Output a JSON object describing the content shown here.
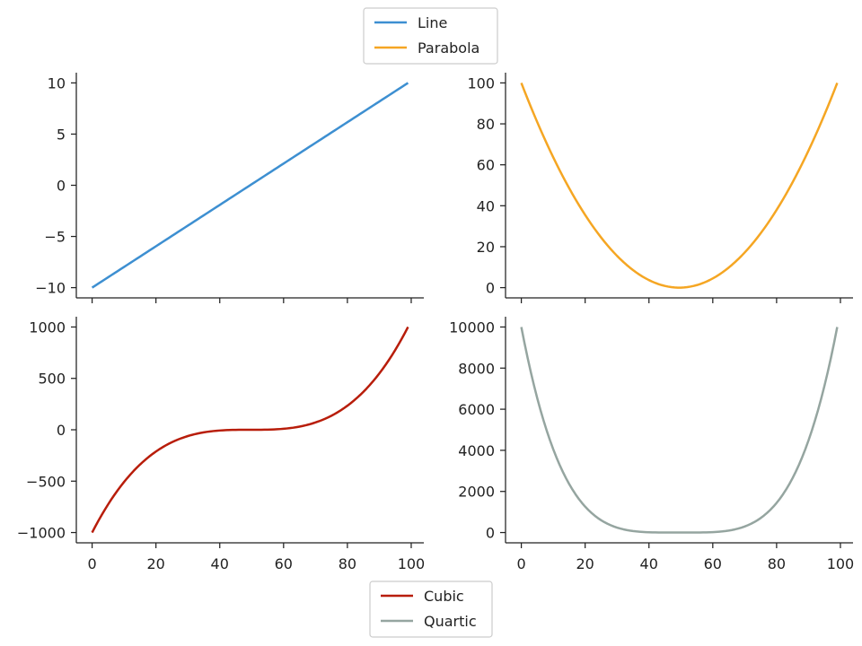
{
  "chart_data": [
    {
      "type": "line",
      "title": "",
      "xlabel": "",
      "ylabel": "",
      "xlim": [
        -4.95,
        103.95
      ],
      "ylim": [
        -11,
        11
      ],
      "grid": false,
      "x_ticks": [
        0,
        20,
        40,
        60,
        80,
        100
      ],
      "x_tick_labels": [
        "",
        "",
        "",
        "",
        "",
        ""
      ],
      "y_ticks": [
        -10,
        -5,
        0,
        5,
        10
      ],
      "y_tick_labels": [
        "−10",
        "−5",
        "0",
        "5",
        "10"
      ],
      "series": [
        {
          "name": "Line",
          "color": "#3d8fd1",
          "function": "linear",
          "x_range": [
            0,
            99
          ],
          "x_points": 100,
          "y_start": -10,
          "y_end": 10
        }
      ]
    },
    {
      "type": "line",
      "title": "",
      "xlabel": "",
      "ylabel": "",
      "xlim": [
        -4.95,
        103.95
      ],
      "ylim": [
        -5,
        105
      ],
      "grid": false,
      "x_ticks": [
        0,
        20,
        40,
        60,
        80,
        100
      ],
      "x_tick_labels": [
        "",
        "",
        "",
        "",
        "",
        ""
      ],
      "y_ticks": [
        0,
        20,
        40,
        60,
        80,
        100
      ],
      "y_tick_labels": [
        "0",
        "20",
        "40",
        "60",
        "80",
        "100"
      ],
      "series": [
        {
          "name": "Parabola",
          "color": "#f5a623",
          "function": "parabola",
          "x_range": [
            0,
            99
          ],
          "x_points": 100,
          "y_at_ends": 100,
          "y_min": 0
        }
      ]
    },
    {
      "type": "line",
      "title": "",
      "xlabel": "",
      "ylabel": "",
      "xlim": [
        -4.95,
        103.95
      ],
      "ylim": [
        -1100,
        1100
      ],
      "grid": false,
      "x_ticks": [
        0,
        20,
        40,
        60,
        80,
        100
      ],
      "x_tick_labels": [
        "0",
        "20",
        "40",
        "60",
        "80",
        "100"
      ],
      "y_ticks": [
        -1000,
        -500,
        0,
        500,
        1000
      ],
      "y_tick_labels": [
        "−1000",
        "−500",
        "0",
        "500",
        "1000"
      ],
      "series": [
        {
          "name": "Cubic",
          "color": "#b81d0a",
          "function": "cubic",
          "x_range": [
            0,
            99
          ],
          "x_points": 100,
          "y_start": -1000,
          "y_end": 1000
        }
      ]
    },
    {
      "type": "line",
      "title": "",
      "xlabel": "",
      "ylabel": "",
      "xlim": [
        -4.95,
        103.95
      ],
      "ylim": [
        -500,
        10500
      ],
      "grid": false,
      "x_ticks": [
        0,
        20,
        40,
        60,
        80,
        100
      ],
      "x_tick_labels": [
        "0",
        "20",
        "40",
        "60",
        "80",
        "100"
      ],
      "y_ticks": [
        0,
        2000,
        4000,
        6000,
        8000,
        10000
      ],
      "y_tick_labels": [
        "0",
        "2000",
        "4000",
        "6000",
        "8000",
        "10000"
      ],
      "series": [
        {
          "name": "Quartic",
          "color": "#95a5a0",
          "function": "quartic",
          "x_range": [
            0,
            99
          ],
          "x_points": 100,
          "y_at_ends": 10000,
          "y_min": 0
        }
      ]
    }
  ],
  "legends": {
    "top": {
      "placement": "top-center",
      "items": [
        {
          "label": "Line",
          "color": "#3d8fd1"
        },
        {
          "label": "Parabola",
          "color": "#f5a623"
        }
      ]
    },
    "bottom": {
      "placement": "bottom-center",
      "items": [
        {
          "label": "Cubic",
          "color": "#b81d0a"
        },
        {
          "label": "Quartic",
          "color": "#95a5a0"
        }
      ]
    }
  }
}
